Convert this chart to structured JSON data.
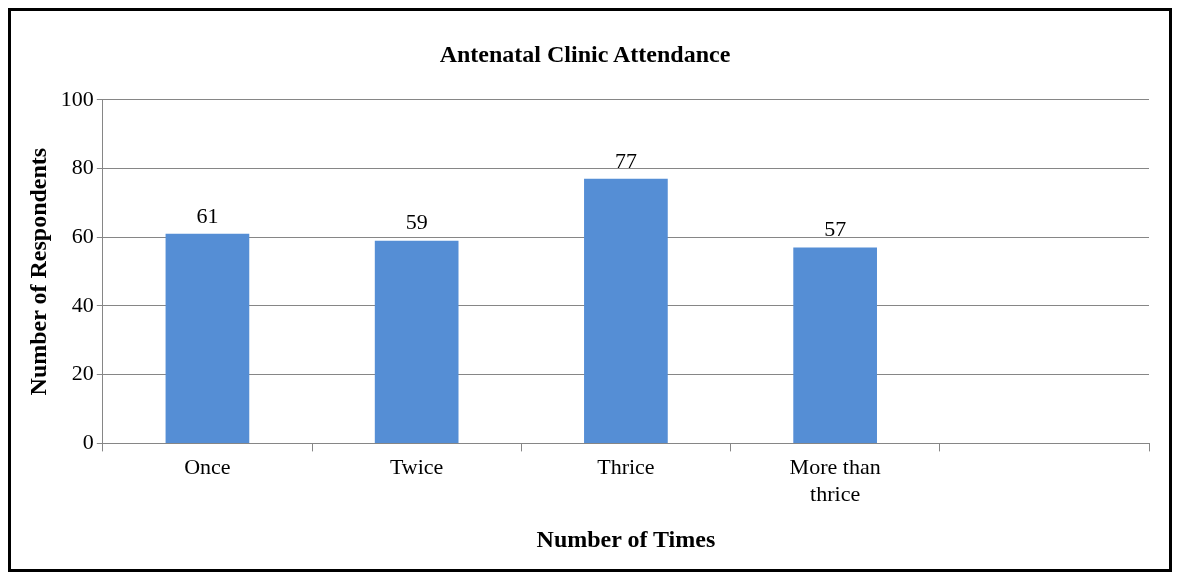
{
  "chart_data": {
    "type": "bar",
    "title": "Antenatal Clinic Attendance",
    "xlabel": "Number of Times",
    "ylabel": "Number of Respondents",
    "categories": [
      "Once",
      "Twice",
      "Thrice",
      "More than thrice",
      null
    ],
    "values": [
      61,
      59,
      77,
      57,
      null
    ],
    "color": "#558ed5",
    "ylim": [
      0,
      100
    ],
    "yticks": [
      0,
      20,
      40,
      60,
      80,
      100
    ],
    "grid": "y",
    "data_labels": true
  }
}
